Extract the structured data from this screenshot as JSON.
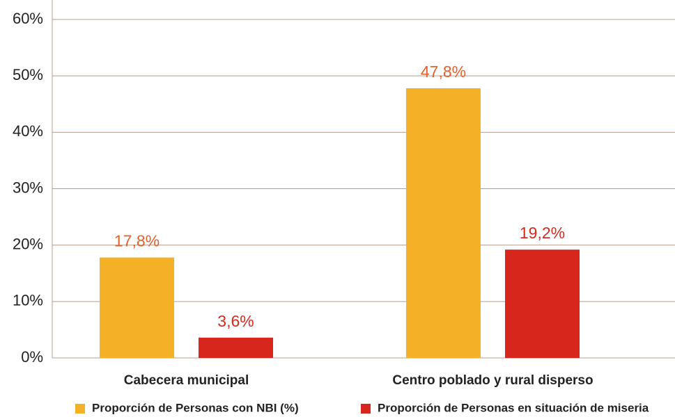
{
  "chart_data": {
    "type": "bar",
    "categories": [
      "Cabecera municipal",
      "Centro poblado y rural disperso"
    ],
    "series": [
      {
        "name": "Proporción de Personas con NBI (%)",
        "color": "#f4b027",
        "values": [
          17.8,
          47.8
        ],
        "value_labels": [
          "17,8%",
          "47,8%"
        ]
      },
      {
        "name": "Proporción de Personas en situación de miseria",
        "color": "#d7261c",
        "values": [
          3.6,
          19.2
        ],
        "value_labels": [
          "3,6%",
          "19,2%"
        ]
      }
    ],
    "ylim": [
      0,
      60
    ],
    "yticks": [
      {
        "value": 0,
        "label": "0%"
      },
      {
        "value": 10,
        "label": "10%"
      },
      {
        "value": 20,
        "label": "20%"
      },
      {
        "value": 30,
        "label": "30%"
      },
      {
        "value": 40,
        "label": "40%"
      },
      {
        "value": 50,
        "label": "50%"
      },
      {
        "value": 60,
        "label": "60%"
      }
    ],
    "grid": true,
    "legend": "bottom"
  }
}
